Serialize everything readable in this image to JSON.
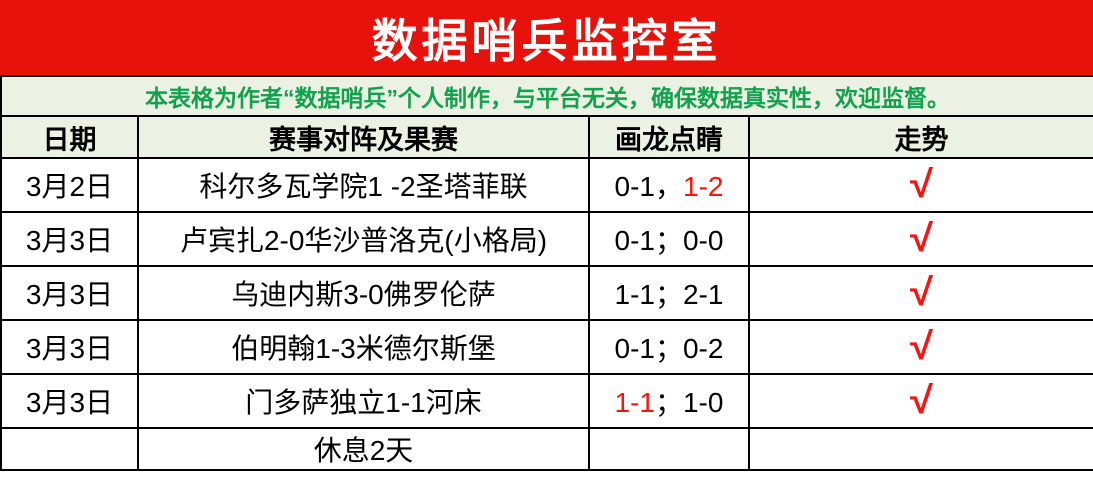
{
  "banner": {
    "title": "数据哨兵监控室"
  },
  "subtitle": "本表格为作者“数据哨兵”个人制作，与平台无关，确保数据真实性，欢迎监督。",
  "colors": {
    "banner_red": "#e8120d",
    "highlight_red": "#f81410",
    "subtitle_green": "#12a14c",
    "band_light_green": "#ecf2e3",
    "border_black": "#000000"
  },
  "icons": {
    "trend_check": "√"
  },
  "table": {
    "headers": [
      "日期",
      "赛事对阵及果赛",
      "画龙点睛",
      "走势"
    ],
    "rows": [
      {
        "date": "3月2日",
        "match": "科尔多瓦学院1 -2圣塔菲联",
        "score_segments": [
          {
            "text": "0-1，",
            "red": false
          },
          {
            "text": "1-2",
            "red": true
          }
        ],
        "trend": "√"
      },
      {
        "date": "3月3日",
        "match": "卢宾扎2-0华沙普洛克(小格局)",
        "score_segments": [
          {
            "text": "0-1；0-0",
            "red": false
          }
        ],
        "trend": "√"
      },
      {
        "date": "3月3日",
        "match": "乌迪内斯3-0佛罗伦萨",
        "score_segments": [
          {
            "text": "1-1；2-1",
            "red": false
          }
        ],
        "trend": "√"
      },
      {
        "date": "3月3日",
        "match": "伯明翰1-3米德尔斯堡",
        "score_segments": [
          {
            "text": "0-1；0-2",
            "red": false
          }
        ],
        "trend": "√"
      },
      {
        "date": "3月3日",
        "match": "门多萨独立1-1河床",
        "score_segments": [
          {
            "text": "1-1",
            "red": true
          },
          {
            "text": "；1-0",
            "red": false
          }
        ],
        "trend": "√"
      },
      {
        "date": "",
        "match": "休息2天",
        "score_segments": [],
        "trend": ""
      }
    ]
  }
}
